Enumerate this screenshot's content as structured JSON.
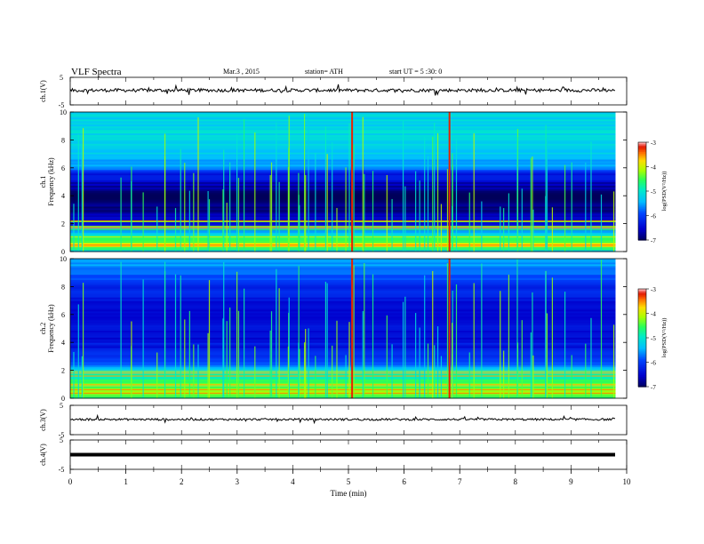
{
  "header": {
    "title": "VLF Spectra",
    "date": "Mar.3 , 2015",
    "station": "station= ATH",
    "start_ut": "start UT = 5 :30: 0"
  },
  "chart_data": [
    {
      "type": "line",
      "panel": "waveform",
      "ylabel": "ch.1(V)",
      "yticks": [
        "5",
        "-5"
      ],
      "ylim": [
        -5,
        5
      ],
      "xlim": [
        0,
        10
      ],
      "level": 0.3
    },
    {
      "type": "heatmap",
      "panel": "spectrogram",
      "ylabel_top": "ch.1",
      "ylabel": "Frequency (kHz)",
      "yticks": [
        "0",
        "2",
        "4",
        "6",
        "8",
        "10"
      ],
      "ylim": [
        0,
        10
      ],
      "xlim": [
        0,
        9.8
      ],
      "colorbar": {
        "label": "log(PSD(V²/Hz))",
        "ticks": [
          "-3",
          "-4",
          "-5",
          "-6",
          "-7"
        ],
        "range": [
          -7,
          -3
        ]
      },
      "profile": [
        {
          "f": 0.0,
          "v": -5.8
        },
        {
          "f": 0.4,
          "v": -3.6
        },
        {
          "f": 0.9,
          "v": -4.6
        },
        {
          "f": 1.6,
          "v": -5.6
        },
        {
          "f": 2.1,
          "v": -6.5
        },
        {
          "f": 2.8,
          "v": -6.7
        },
        {
          "f": 3.6,
          "v": -7.0
        },
        {
          "f": 4.6,
          "v": -6.7
        },
        {
          "f": 5.6,
          "v": -6.2
        },
        {
          "f": 6.2,
          "v": -5.5
        },
        {
          "f": 8.0,
          "v": -5.1
        },
        {
          "f": 10.0,
          "v": -5.2
        }
      ],
      "strong_events_min": [
        5.05,
        6.8
      ]
    },
    {
      "type": "heatmap",
      "panel": "spectrogram",
      "ylabel_top": "ch.2",
      "ylabel": "Frequency (kHz)",
      "yticks": [
        "0",
        "2",
        "4",
        "6",
        "8",
        "10"
      ],
      "ylim": [
        0,
        10
      ],
      "xlim": [
        0,
        9.8
      ],
      "colorbar": {
        "label": "log(PSD(V²/Hz))",
        "ticks": [
          "-3",
          "-4",
          "-5",
          "-6",
          "-7"
        ],
        "range": [
          -7,
          -3
        ]
      },
      "profile": [
        {
          "f": 0.0,
          "v": -4.6
        },
        {
          "f": 0.5,
          "v": -4.2
        },
        {
          "f": 1.2,
          "v": -4.5
        },
        {
          "f": 2.0,
          "v": -5.2
        },
        {
          "f": 2.6,
          "v": -5.8
        },
        {
          "f": 3.5,
          "v": -6.3
        },
        {
          "f": 4.5,
          "v": -6.4
        },
        {
          "f": 5.5,
          "v": -6.5
        },
        {
          "f": 7.0,
          "v": -6.4
        },
        {
          "f": 8.5,
          "v": -5.9
        },
        {
          "f": 9.5,
          "v": -5.6
        },
        {
          "f": 10.0,
          "v": -5.5
        }
      ],
      "strong_events_min": [
        5.05,
        6.8
      ]
    },
    {
      "type": "line",
      "panel": "waveform",
      "ylabel": "ch.3(V)",
      "yticks": [
        "5",
        "-5"
      ],
      "ylim": [
        -5,
        5
      ],
      "xlim": [
        0,
        9.8
      ],
      "level": 0.2
    },
    {
      "type": "line",
      "panel": "waveform",
      "ylabel": "ch.4(V)",
      "yticks": [
        "5",
        "-5"
      ],
      "ylim": [
        -5,
        5
      ],
      "xlim": [
        0,
        9.8
      ],
      "level": 0.0
    }
  ],
  "x_axis": {
    "label": "Time (min)",
    "ticks": [
      "0",
      "1",
      "2",
      "3",
      "4",
      "5",
      "6",
      "7",
      "8",
      "9",
      "10"
    ],
    "range": [
      0,
      10
    ]
  }
}
